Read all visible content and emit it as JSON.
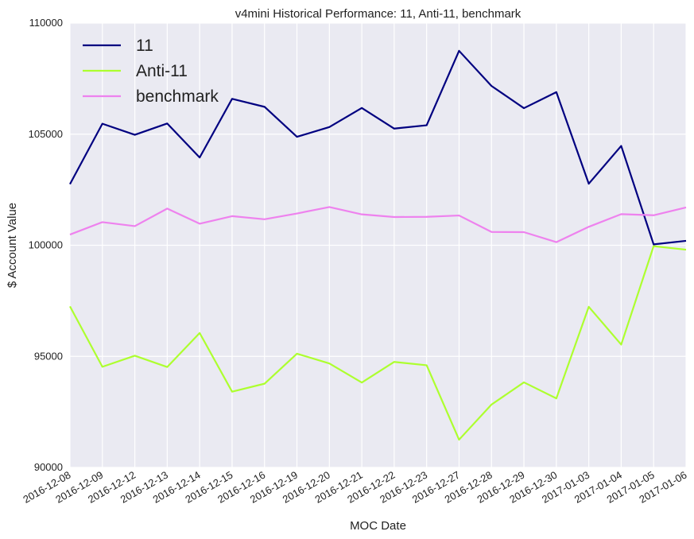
{
  "chart_data": {
    "type": "line",
    "title": "v4mini Historical Performance: 11, Anti-11, benchmark",
    "xlabel": "MOC Date",
    "ylabel": "$ Account Value",
    "ylim": [
      90000,
      110000
    ],
    "yticks": [
      90000,
      95000,
      100000,
      105000,
      110000
    ],
    "grid": true,
    "legend_position": "top-left",
    "categories": [
      "2016-12-08",
      "2016-12-09",
      "2016-12-12",
      "2016-12-13",
      "2016-12-14",
      "2016-12-15",
      "2016-12-16",
      "2016-12-19",
      "2016-12-20",
      "2016-12-21",
      "2016-12-22",
      "2016-12-23",
      "2016-12-27",
      "2016-12-28",
      "2016-12-29",
      "2016-12-30",
      "2017-01-03",
      "2017-01-04",
      "2017-01-05",
      "2017-01-06"
    ],
    "series": [
      {
        "name": "11",
        "color": "#000080",
        "values": [
          102750,
          105470,
          104970,
          105480,
          103950,
          106590,
          106230,
          104880,
          105320,
          106180,
          105250,
          105400,
          108750,
          107170,
          106170,
          106890,
          102770,
          104470,
          100040,
          100200
        ]
      },
      {
        "name": "Anti-11",
        "color": "#adff2f",
        "values": [
          97250,
          94530,
          95030,
          94520,
          96050,
          93410,
          93770,
          95120,
          94680,
          93820,
          94750,
          94600,
          91250,
          92830,
          93830,
          93110,
          97230,
          95530,
          99960,
          99800
        ]
      },
      {
        "name": "benchmark",
        "color": "#ee82ee",
        "values": [
          100480,
          101040,
          100860,
          101650,
          100970,
          101310,
          101170,
          101430,
          101720,
          101390,
          101270,
          101280,
          101340,
          100600,
          100590,
          100140,
          100830,
          101400,
          101350,
          101700
        ]
      }
    ]
  }
}
